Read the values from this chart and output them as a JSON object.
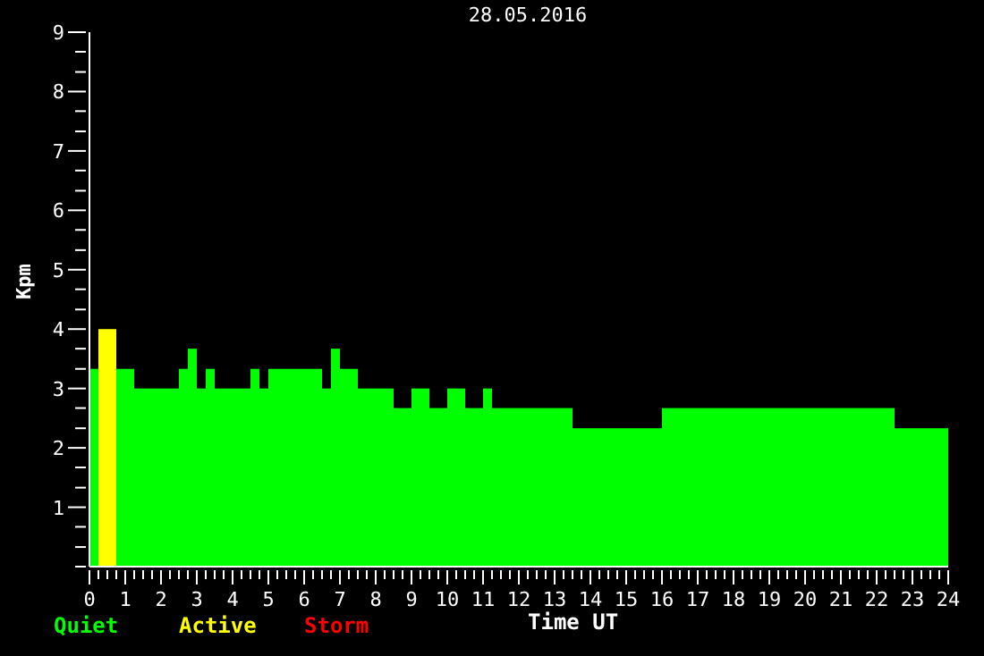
{
  "chart_data": {
    "type": "histogram",
    "title": "28.05.2016",
    "xlabel": "Time UT",
    "ylabel": "Kpm",
    "bins": [
      0,
      0.25,
      0.75,
      1.25,
      2.5,
      2.75,
      3,
      3.25,
      3.5,
      4.5,
      4.75,
      5,
      6.5,
      6.75,
      7,
      7.5,
      8.5,
      9,
      9.5,
      10,
      10.5,
      11,
      11.25,
      13.5,
      16,
      22.5,
      24
    ],
    "series": [
      {
        "name": "Quiet",
        "color": "#00ff00",
        "values": [
          3.33,
          null,
          3.33,
          3,
          3.33,
          3.67,
          3,
          3.33,
          3,
          3.33,
          3,
          3.33,
          3,
          3.67,
          3.33,
          3,
          2.67,
          3,
          2.67,
          3,
          2.67,
          3,
          2.67,
          2.33,
          2.67,
          2.33
        ]
      },
      {
        "name": "Active",
        "color": "#ffff00",
        "values": [
          null,
          4,
          null,
          null,
          null,
          null,
          null,
          null,
          null,
          null,
          null,
          null,
          null,
          null,
          null,
          null,
          null,
          null,
          null,
          null,
          null,
          null,
          null,
          null,
          null,
          null
        ]
      }
    ],
    "annotations": [
      "Storm"
    ],
    "xlim": [
      0,
      24
    ],
    "xticks": [
      0,
      {
        "value": 0.25,
        "label": null
      },
      {
        "value": 0.5,
        "label": null
      },
      {
        "value": 0.75,
        "label": null
      },
      1,
      {
        "value": 1.25,
        "label": null
      },
      {
        "value": 1.5,
        "label": null
      },
      {
        "value": 1.75,
        "label": null
      },
      2,
      {
        "value": 2.25,
        "label": null
      },
      {
        "value": 2.5,
        "label": null
      },
      {
        "value": 2.75,
        "label": null
      },
      3,
      {
        "value": 3.25,
        "label": null
      },
      {
        "value": 3.5,
        "label": null
      },
      {
        "value": 3.75,
        "label": null
      },
      4,
      {
        "value": 4.25,
        "label": null
      },
      {
        "value": 4.5,
        "label": null
      },
      {
        "value": 4.75,
        "label": null
      },
      5,
      {
        "value": 5.25,
        "label": null
      },
      {
        "value": 5.5,
        "label": null
      },
      {
        "value": 5.75,
        "label": null
      },
      6,
      {
        "value": 6.25,
        "label": null
      },
      {
        "value": 6.5,
        "label": null
      },
      {
        "value": 6.75,
        "label": null
      },
      7,
      {
        "value": 7.25,
        "label": null
      },
      {
        "value": 7.5,
        "label": null
      },
      {
        "value": 7.75,
        "label": null
      },
      8,
      {
        "value": 8.25,
        "label": null
      },
      {
        "value": 8.5,
        "label": null
      },
      {
        "value": 8.75,
        "label": null
      },
      9,
      {
        "value": 9.25,
        "label": null
      },
      {
        "value": 9.5,
        "label": null
      },
      {
        "value": 9.75,
        "label": null
      },
      10,
      {
        "value": 10.25,
        "label": null
      },
      {
        "value": 10.5,
        "label": null
      },
      {
        "value": 10.75,
        "label": null
      },
      11,
      {
        "value": 11.25,
        "label": null
      },
      {
        "value": 11.5,
        "label": null
      },
      {
        "value": 11.75,
        "label": null
      },
      12,
      {
        "value": 12.25,
        "label": null
      },
      {
        "value": 12.5,
        "label": null
      },
      {
        "value": 12.75,
        "label": null
      },
      13,
      {
        "value": 13.25,
        "label": null
      },
      {
        "value": 13.5,
        "label": null
      },
      {
        "value": 13.75,
        "label": null
      },
      14,
      {
        "value": 14.25,
        "label": null
      },
      {
        "value": 14.5,
        "label": null
      },
      {
        "value": 14.75,
        "label": null
      },
      15,
      {
        "value": 15.25,
        "label": null
      },
      {
        "value": 15.5,
        "label": null
      },
      {
        "value": 15.75,
        "label": null
      },
      16,
      {
        "value": 16.25,
        "label": null
      },
      {
        "value": 16.5,
        "label": null
      },
      {
        "value": 16.75,
        "label": null
      },
      17,
      {
        "value": 17.25,
        "label": null
      },
      {
        "value": 17.5,
        "label": null
      },
      {
        "value": 17.75,
        "label": null
      },
      18,
      {
        "value": 18.25,
        "label": null
      },
      {
        "value": 18.5,
        "label": null
      },
      {
        "value": 18.75,
        "label": null
      },
      19,
      {
        "value": 19.25,
        "label": null
      },
      {
        "value": 19.5,
        "label": null
      },
      {
        "value": 19.75,
        "label": null
      },
      20,
      {
        "value": 20.25,
        "label": null
      },
      {
        "value": 20.5,
        "label": null
      },
      {
        "value": 20.75,
        "label": null
      },
      21,
      {
        "value": 21.25,
        "label": null
      },
      {
        "value": 21.5,
        "label": null
      },
      {
        "value": 21.75,
        "label": null
      },
      22,
      {
        "value": 22.25,
        "label": null
      },
      {
        "value": 22.5,
        "label": null
      },
      {
        "value": 22.75,
        "label": null
      },
      23,
      {
        "value": 23.25,
        "label": null
      },
      {
        "value": 23.5,
        "label": null
      },
      {
        "value": 23.75,
        "label": null
      },
      24
    ],
    "ylim": [
      0,
      9
    ],
    "yticks": [
      {
        "value": 0,
        "label": null
      },
      {
        "value": 0.33,
        "label": null
      },
      {
        "value": 0.67,
        "label": null
      },
      1,
      {
        "value": 1.33,
        "label": null
      },
      {
        "value": 1.67,
        "label": null
      },
      2,
      {
        "value": 2.33,
        "label": null
      },
      {
        "value": 2.67,
        "label": null
      },
      3,
      {
        "value": 3.33,
        "label": null
      },
      {
        "value": 3.67,
        "label": null
      },
      4,
      {
        "value": 4.33,
        "label": null
      },
      {
        "value": 4.67,
        "label": null
      },
      5,
      {
        "value": 5.33,
        "label": null
      },
      {
        "value": 5.67,
        "label": null
      },
      6,
      {
        "value": 6.33,
        "label": null
      },
      {
        "value": 6.67,
        "label": null
      },
      7,
      {
        "value": 7.33,
        "label": null
      },
      {
        "value": 7.67,
        "label": null
      },
      8,
      {
        "value": 8.33,
        "label": null
      },
      {
        "value": 8.67,
        "label": null
      },
      9
    ],
    "legend": "bottom"
  }
}
